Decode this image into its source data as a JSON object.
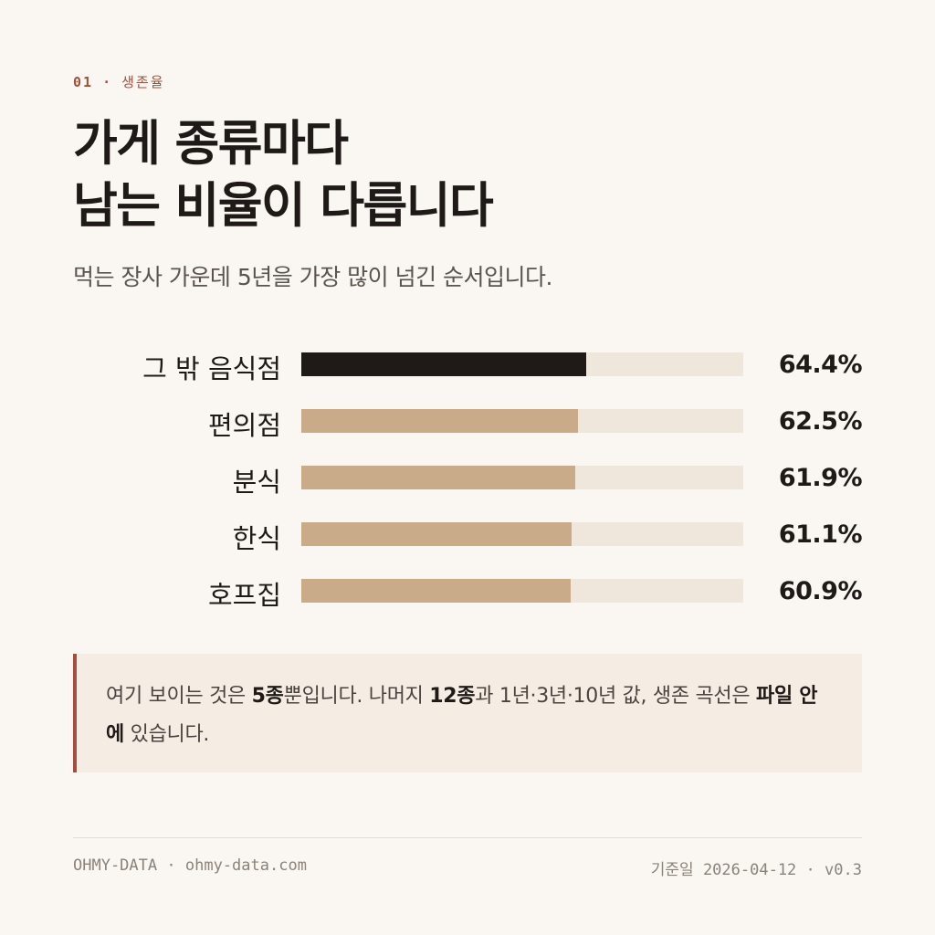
{
  "eyebrow": {
    "number": "01",
    "separator": "·",
    "section": "생존율"
  },
  "title": {
    "line1": "가게 종류마다",
    "line2": "남는 비율이 다릅니다"
  },
  "subtitle": "먹는 장사 가운데 5년을 가장 많이 넘긴 순서입니다.",
  "colors": {
    "highlight": "#1f1a17",
    "bar": "#c9ab89",
    "track": "#f0e7dc",
    "accent": "#a34f3a"
  },
  "chart_data": {
    "type": "bar",
    "orientation": "horizontal",
    "categories": [
      "그 밖 음식점",
      "편의점",
      "분식",
      "한식",
      "호프집"
    ],
    "values": [
      64.4,
      62.5,
      61.9,
      61.1,
      60.9
    ],
    "value_labels": [
      "64.4%",
      "62.5%",
      "61.9%",
      "61.1%",
      "60.9%"
    ],
    "highlight_index": 0,
    "xlim": [
      0,
      100
    ],
    "title": "",
    "xlabel": "",
    "ylabel": "",
    "grid": false,
    "legend": "none"
  },
  "note": {
    "p1": "여기 보이는 것은 ",
    "b1": "5종",
    "p2": "뿐입니다. 나머지 ",
    "b2": "12종",
    "p3": "과 1년·3년·10년 값, 생존 곡선은 ",
    "b3": "파일 안에",
    "p4": " 있습니다."
  },
  "footer": {
    "brand": "OHMY-DATA",
    "separator": "·",
    "site": "ohmy-data.com",
    "date_label": "기준일",
    "date": "2026-04-12",
    "version": "v0.3"
  }
}
